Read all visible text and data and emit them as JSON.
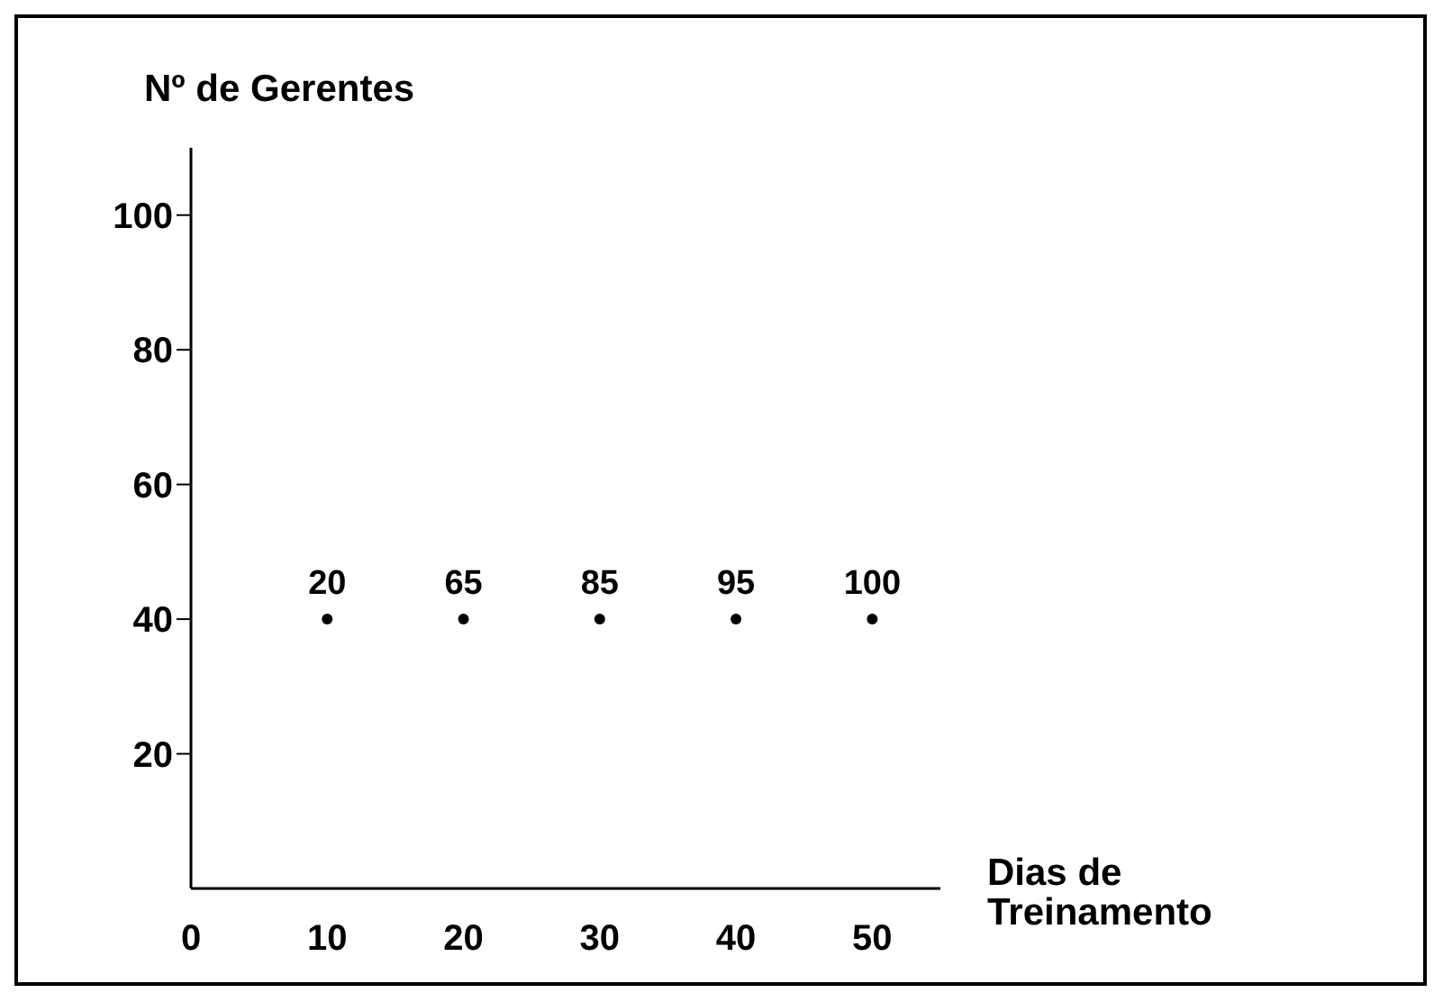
{
  "chart_data": {
    "type": "scatter",
    "ylabel": "Nº de Gerentes",
    "xlabel": "Dias de Treinamento",
    "x": [
      10,
      20,
      30,
      40,
      50
    ],
    "values": [
      40,
      40,
      40,
      40,
      40
    ],
    "annotations": [
      {
        "text": "20",
        "x": 10,
        "y": 40
      },
      {
        "text": "65",
        "x": 20,
        "y": 40
      },
      {
        "text": "85",
        "x": 30,
        "y": 40
      },
      {
        "text": "95",
        "x": 40,
        "y": 40
      },
      {
        "text": "100",
        "x": 50,
        "y": 40
      }
    ],
    "color": "#000000",
    "marker": "circle",
    "xlim": [
      0,
      55
    ],
    "xticks": [
      0,
      10,
      20,
      30,
      40,
      50
    ],
    "ylim": [
      0,
      110
    ],
    "yticks": [
      20,
      40,
      60,
      80,
      100
    ],
    "grid": false,
    "legend": false
  }
}
